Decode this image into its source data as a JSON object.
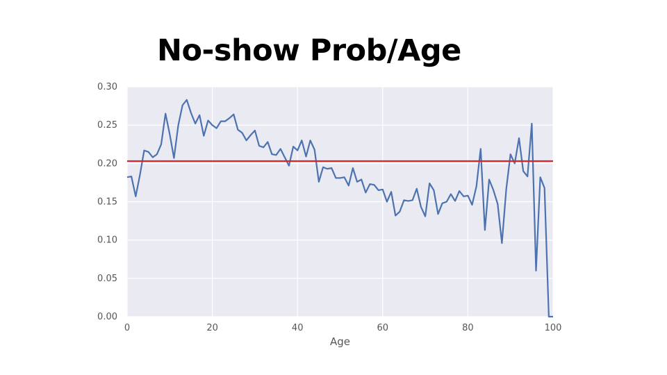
{
  "slide": {
    "title": "No-show Prob/Age"
  },
  "chart_data": {
    "type": "line",
    "title": "",
    "xlabel": "Age",
    "ylabel": "",
    "xlim": [
      0,
      100
    ],
    "ylim": [
      0,
      0.3
    ],
    "grid": true,
    "xticks": [
      "0",
      "20",
      "40",
      "60",
      "80",
      "100"
    ],
    "xtick_values": [
      0,
      20,
      40,
      60,
      80,
      100
    ],
    "yticks": [
      "0.00",
      "0.05",
      "0.10",
      "0.15",
      "0.20",
      "0.25",
      "0.30"
    ],
    "ytick_values": [
      0,
      0.05,
      0.1,
      0.15,
      0.2,
      0.25,
      0.3
    ],
    "series": [
      {
        "color": "#4c72b0",
        "x": [
          0,
          1,
          2,
          3,
          4,
          5,
          6,
          7,
          8,
          9,
          10,
          11,
          12,
          13,
          14,
          15,
          16,
          17,
          18,
          19,
          20,
          21,
          22,
          23,
          24,
          25,
          26,
          27,
          28,
          29,
          30,
          31,
          32,
          33,
          34,
          35,
          36,
          37,
          38,
          39,
          40,
          41,
          42,
          43,
          44,
          45,
          46,
          47,
          48,
          49,
          50,
          51,
          52,
          53,
          54,
          55,
          56,
          57,
          58,
          59,
          60,
          61,
          62,
          63,
          64,
          65,
          66,
          67,
          68,
          69,
          70,
          71,
          72,
          73,
          74,
          75,
          76,
          77,
          78,
          79,
          80,
          81,
          82,
          83,
          84,
          85,
          86,
          87,
          88,
          89,
          90,
          91,
          92,
          93,
          94,
          95,
          96,
          97,
          98,
          99,
          100
        ],
        "y": [
          0.182,
          0.183,
          0.157,
          0.185,
          0.217,
          0.215,
          0.208,
          0.212,
          0.225,
          0.265,
          0.238,
          0.207,
          0.25,
          0.276,
          0.283,
          0.266,
          0.252,
          0.263,
          0.236,
          0.256,
          0.25,
          0.246,
          0.255,
          0.255,
          0.259,
          0.264,
          0.244,
          0.24,
          0.23,
          0.237,
          0.243,
          0.223,
          0.221,
          0.228,
          0.212,
          0.211,
          0.219,
          0.208,
          0.197,
          0.222,
          0.217,
          0.23,
          0.209,
          0.23,
          0.218,
          0.176,
          0.195,
          0.193,
          0.194,
          0.181,
          0.181,
          0.182,
          0.171,
          0.194,
          0.176,
          0.179,
          0.162,
          0.173,
          0.172,
          0.165,
          0.166,
          0.15,
          0.163,
          0.132,
          0.137,
          0.152,
          0.151,
          0.152,
          0.167,
          0.143,
          0.131,
          0.174,
          0.165,
          0.134,
          0.148,
          0.15,
          0.16,
          0.151,
          0.164,
          0.157,
          0.158,
          0.146,
          0.17,
          0.219,
          0.113,
          0.179,
          0.165,
          0.147,
          0.096,
          0.166,
          0.212,
          0.2,
          0.233,
          0.19,
          0.183,
          0.252,
          0.06,
          0.182,
          0.168,
          0.0,
          0.0
        ]
      },
      {
        "color": "#d62728",
        "x": [
          0,
          100
        ],
        "y": [
          0.203,
          0.203
        ]
      }
    ]
  }
}
